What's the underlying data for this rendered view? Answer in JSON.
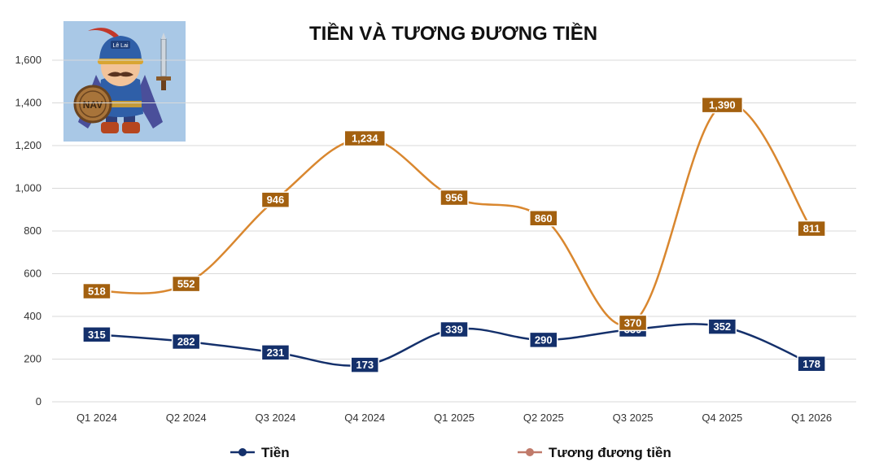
{
  "chart_data": {
    "type": "line",
    "title": "TIỀN VÀ TƯƠNG ĐƯƠNG TIỀN",
    "xlabel": "",
    "ylabel": "",
    "categories": [
      "Q1 2024",
      "Q2 2024",
      "Q3 2024",
      "Q4 2024",
      "Q1 2025",
      "Q2 2025",
      "Q3 2025",
      "Q4 2025",
      "Q1 2026"
    ],
    "ylim": [
      0,
      1600
    ],
    "yticks": [
      0,
      200,
      400,
      600,
      800,
      1000,
      1200,
      1400,
      1600
    ],
    "ytick_labels": [
      "0",
      "200",
      "400",
      "600",
      "800",
      "1,000",
      "1,200",
      "1,400",
      "1,600"
    ],
    "grid": true,
    "legend_position": "bottom",
    "series": [
      {
        "name": "Tiền",
        "values": [
          315,
          282,
          231,
          173,
          339,
          290,
          339,
          352,
          178
        ],
        "data_labels": [
          "315",
          "282",
          "231",
          "173",
          "339",
          "290",
          "339",
          "352",
          "178"
        ],
        "line_color": "#14306b",
        "label_bg": "#14306b",
        "legend_marker_color": "#14306b"
      },
      {
        "name": "Tương đương tiền",
        "values": [
          518,
          552,
          946,
          1234,
          956,
          860,
          370,
          1390,
          811
        ],
        "data_labels": [
          "518",
          "552",
          "946",
          "1,234",
          "956",
          "860",
          "370",
          "1,390",
          "811"
        ],
        "line_color": "#d9872f",
        "label_bg": "#a3600f",
        "legend_marker_color": "#c07a6a"
      }
    ]
  },
  "logo": {
    "name": "mascot-logo",
    "bg_color": "#a9c8e6",
    "lettering": [
      "Lê Lai",
      "NAV"
    ]
  }
}
